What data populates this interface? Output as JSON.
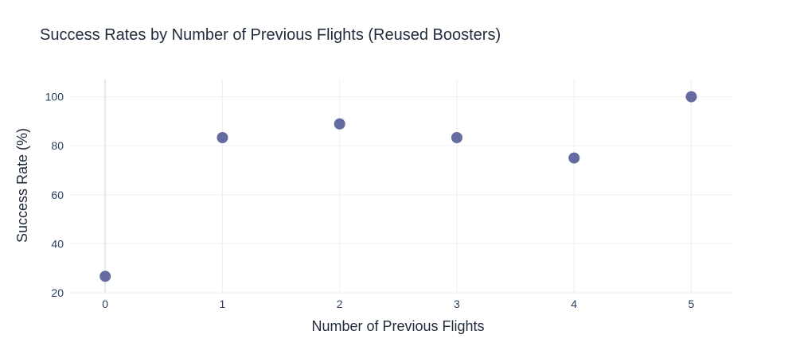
{
  "chart_data": {
    "type": "scatter",
    "title": "Success Rates by Number of Previous Flights (Reused Boosters)",
    "xlabel": "Number of Previous Flights",
    "ylabel": "Success Rate (%)",
    "x": [
      0,
      1,
      2,
      3,
      4,
      5
    ],
    "y": [
      26.7,
      83.3,
      88.9,
      83.3,
      75.0,
      100.0
    ],
    "xlim": [
      -0.3,
      5.35
    ],
    "ylim": [
      20,
      107
    ],
    "x_ticks": [
      0,
      1,
      2,
      3,
      4,
      5
    ],
    "y_ticks": [
      20,
      40,
      60,
      80,
      100
    ],
    "grid": true,
    "marker_color": "#636ba0"
  }
}
